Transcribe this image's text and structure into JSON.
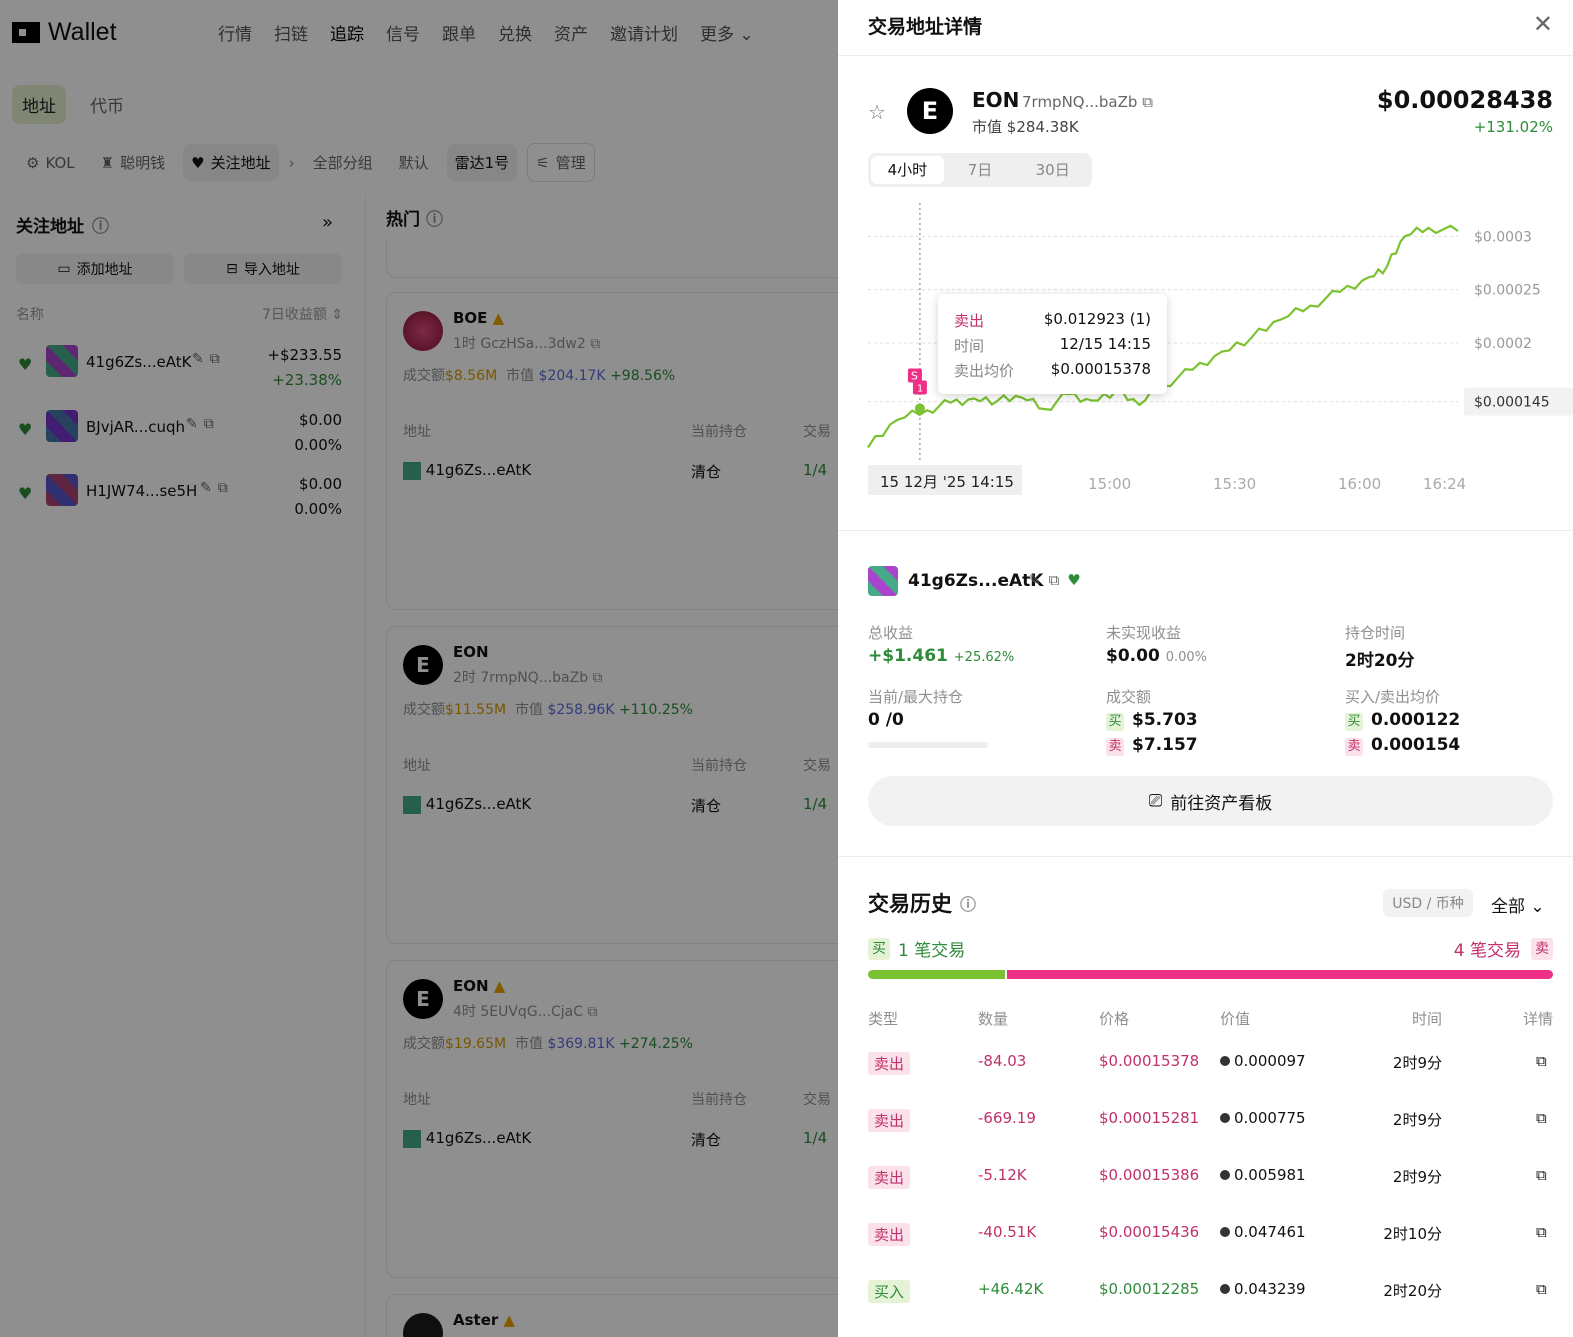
{
  "app": {
    "logo_text": "Wallet"
  },
  "nav": [
    "行情",
    "扫链",
    "追踪",
    "信号",
    "跟单",
    "兑换",
    "资产",
    "邀请计划",
    "更多"
  ],
  "subtabs": [
    "地址",
    "代币"
  ],
  "categories": {
    "kol": "KOL",
    "smart": "聪明钱",
    "follow": "关注地址",
    "all_groups": "全部分组",
    "default": "默认",
    "radar": "雷达1号",
    "manage": "管理"
  },
  "left_panel": {
    "title": "关注地址",
    "add": "添加地址",
    "import": "导入地址",
    "col_name": "名称",
    "col_pnl": "7日收益额",
    "wallets": [
      {
        "name": "41g6Zs...eAtK",
        "pnl": "+$233.55",
        "pct": "+23.38%"
      },
      {
        "name": "BJvjAR...cuqh",
        "pnl": "$0.00",
        "pct": "0.00%"
      },
      {
        "name": "H1JW74...se5H",
        "pnl": "$0.00",
        "pct": "0.00%"
      }
    ]
  },
  "feed": {
    "title": "热门",
    "cards": [
      {
        "name": "BOE",
        "sub": "1时 GczHSa...3dw2",
        "vol_label": "成交额",
        "vol": "$8.56M",
        "mc_label": "市值",
        "mc": "$204.17K",
        "chg": "+98.56%",
        "h_addr": "地址",
        "h_hold": "当前持仓",
        "h_trade": "交易",
        "row_addr": "41g6Zs...eAtK",
        "row_hold": "清仓",
        "row_trade": "1/4"
      },
      {
        "name": "EON",
        "sub": "2时 7rmpNQ...baZb",
        "vol_label": "成交额",
        "vol": "$11.55M",
        "mc_label": "市值",
        "mc": "$258.96K",
        "chg": "+110.25%",
        "h_addr": "地址",
        "h_hold": "当前持仓",
        "h_trade": "交易",
        "row_addr": "41g6Zs...eAtK",
        "row_hold": "清仓",
        "row_trade": "1/4"
      },
      {
        "name": "EON",
        "sub": "4时 5EUVqG...CjaC",
        "vol_label": "成交额",
        "vol": "$19.65M",
        "mc_label": "市值",
        "mc": "$369.81K",
        "chg": "+274.25%",
        "h_addr": "地址",
        "h_hold": "当前持仓",
        "h_trade": "交易",
        "row_addr": "41g6Zs...eAtK",
        "row_hold": "清仓",
        "row_trade": "1/4"
      },
      {
        "name": "Aster"
      }
    ]
  },
  "drawer": {
    "title": "交易地址详情",
    "token": {
      "letter": "E",
      "name": "EON",
      "address": "7rmpNQ...baZb",
      "mc_label": "市值",
      "mc": "$284.38K",
      "price": "$0.00028438",
      "change": "+131.02%"
    },
    "ranges": [
      "4小时",
      "7日",
      "30日"
    ],
    "tooltip": {
      "l1": "卖出",
      "v1": "$0.012923 (1)",
      "l2": "时间",
      "v2": "12/15 14:15",
      "l3": "卖出均价",
      "v3": "$0.00015378"
    },
    "wallet": {
      "name": "41g6Zs...eAtK"
    },
    "stats": {
      "total_label": "总收益",
      "total": "+$1.461",
      "total_pct": "+25.62%",
      "unreal_label": "未实现收益",
      "unreal": "$0.00",
      "unreal_pct": "0.00%",
      "hold_label": "持仓时间",
      "hold": "2时20分",
      "pos_label": "当前/最大持仓",
      "pos": "0",
      "pos_max": "/0",
      "vol_label": "成交额",
      "buy_tag": "买",
      "sell_tag": "卖",
      "vol_buy": "$5.703",
      "vol_sell": "$7.157",
      "avg_label": "买入/卖出均价",
      "avg_buy": "0.000122",
      "avg_sell": "0.000154"
    },
    "goto": "前往资产看板",
    "history": {
      "title": "交易历史",
      "unit": "USD / 币种",
      "filter": "全部",
      "buy_tag": "买",
      "buy_count": "1 笔交易",
      "sell_count": "4 笔交易",
      "sell_tag": "卖",
      "buy_ratio": 0.2,
      "headers": [
        "类型",
        "数量",
        "价格",
        "价值",
        "时间",
        "详情"
      ],
      "rows": [
        {
          "type": "卖出",
          "side": "sell",
          "qty": "-84.03",
          "price": "$0.00015378",
          "value": "0.000097",
          "time": "2时9分"
        },
        {
          "type": "卖出",
          "side": "sell",
          "qty": "-669.19",
          "price": "$0.00015281",
          "value": "0.000775",
          "time": "2时9分"
        },
        {
          "type": "卖出",
          "side": "sell",
          "qty": "-5.12K",
          "price": "$0.00015386",
          "value": "0.005981",
          "time": "2时9分"
        },
        {
          "type": "卖出",
          "side": "sell",
          "qty": "-40.51K",
          "price": "$0.00015436",
          "value": "0.047461",
          "time": "2时10分"
        },
        {
          "type": "买入",
          "side": "buy",
          "qty": "+46.42K",
          "price": "$0.00012285",
          "value": "0.043239",
          "time": "2时20分"
        }
      ]
    }
  },
  "chart_data": {
    "type": "line",
    "y_ticks": [
      "$0.0003",
      "$0.00025",
      "$0.0002",
      "$0.000145"
    ],
    "x_ticks": [
      "15 12月 '25  14:15",
      "15:00",
      "15:30",
      "16:00",
      "16:24"
    ],
    "ylim": [
      9.5e-05,
      0.00032
    ],
    "line_color": "#7ac231",
    "x": [
      0,
      0.05,
      0.1,
      0.14,
      0.18,
      0.22,
      0.26,
      0.3,
      0.34,
      0.38,
      0.42,
      0.46,
      0.5,
      0.55,
      0.6,
      0.65,
      0.7,
      0.75,
      0.8,
      0.85,
      0.88,
      0.91,
      0.95,
      1.0
    ],
    "values": [
      0.000102,
      0.000128,
      0.000137,
      0.000144,
      0.000148,
      0.000146,
      0.000149,
      0.000138,
      0.000152,
      0.000146,
      0.000155,
      0.000142,
      0.00016,
      0.000175,
      0.000192,
      0.000205,
      0.000222,
      0.000235,
      0.000248,
      0.000262,
      0.000272,
      0.0003,
      0.000308,
      0.000305
    ],
    "marker": {
      "label": "S",
      "count": "1"
    }
  }
}
